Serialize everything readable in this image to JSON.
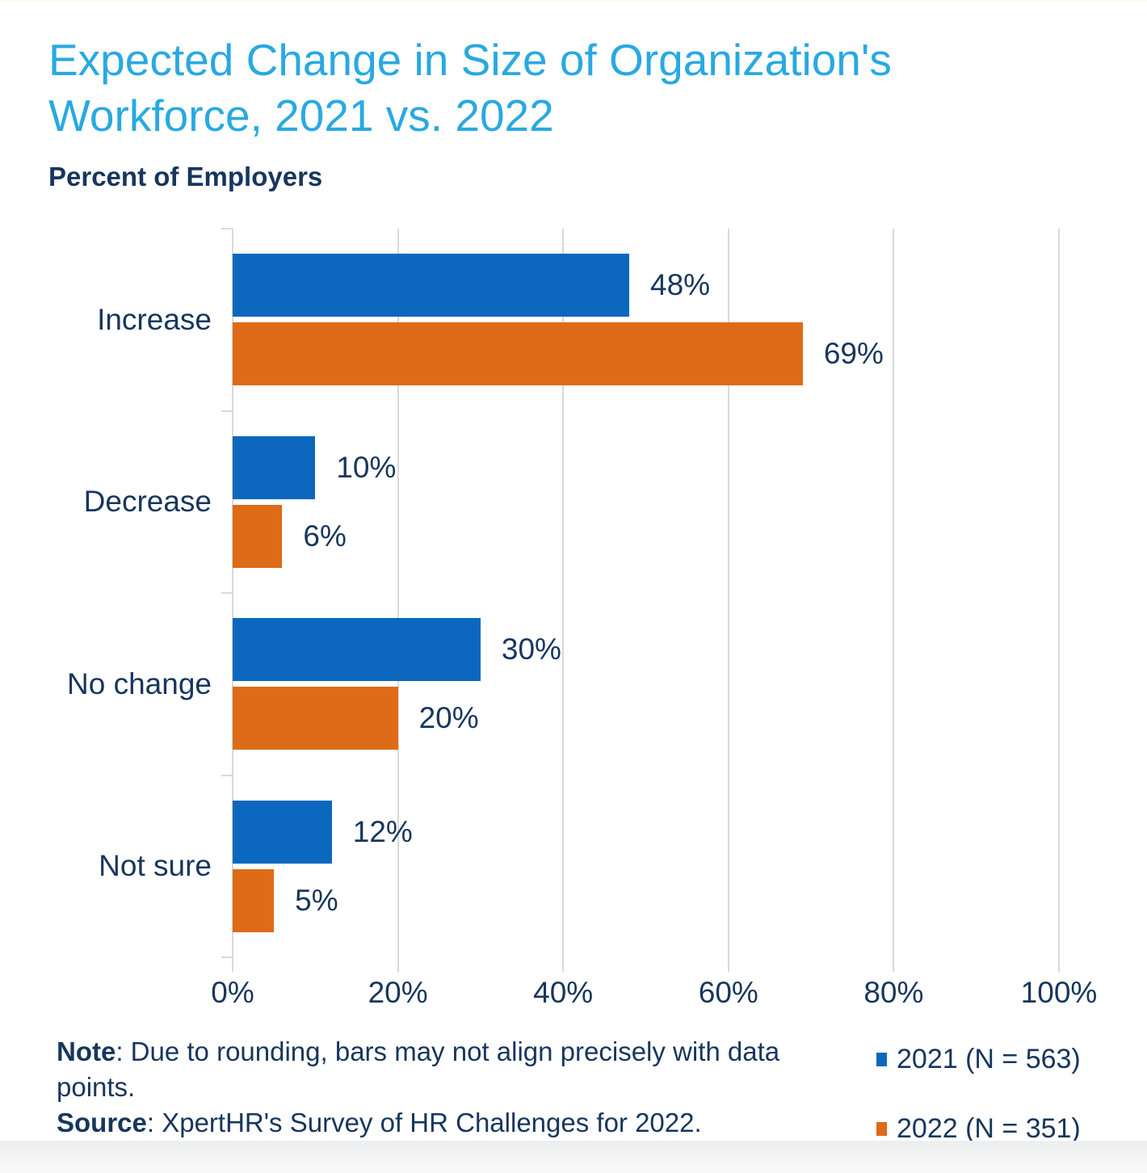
{
  "page": {
    "title_line1": "Expected Change in Size of Organization's",
    "title_line2": "Workforce, 2021 vs. 2022",
    "axis_heading": "Percent of Employers"
  },
  "chart_data": {
    "type": "bar",
    "orientation": "horizontal",
    "title": "Expected Change in Size of Organization's Workforce, 2021 vs. 2022",
    "value_axis_heading": "Percent of Employers",
    "categories": [
      "Increase",
      "Decrease",
      "No change",
      "Not sure"
    ],
    "series": [
      {
        "name": "2021 (N = 563)",
        "color": "#0B68BE",
        "values": [
          48,
          10,
          30,
          12
        ]
      },
      {
        "name": "2022 (N = 351)",
        "color": "#DE6B17",
        "values": [
          69,
          6,
          20,
          5
        ]
      }
    ],
    "value_suffix": "%",
    "x_ticks": [
      0,
      20,
      40,
      60,
      80,
      100
    ],
    "x_tick_labels": [
      "0%",
      "20%",
      "40%",
      "60%",
      "80%",
      "100%"
    ],
    "xlim": [
      0,
      100
    ],
    "grid": "vertical",
    "legend_position": "bottom-right"
  },
  "footnotes": {
    "note_label": "Note",
    "note_text": ": Due to rounding, bars may not align precisely with data points.",
    "source_label": "Source",
    "source_text": ": XpertHR's Survey of HR Challenges for 2022."
  },
  "legend": {
    "items": [
      {
        "label": "2021 (N = 563)",
        "color": "#0B68BE"
      },
      {
        "label": "2022 (N = 351)",
        "color": "#DE6B17"
      }
    ]
  },
  "colors": {
    "title": "#29A9E1",
    "text_navy": "#17365D",
    "gridline": "#D9D9D9",
    "series_2021": "#0B68BE",
    "series_2022": "#DE6B17",
    "background": "#FFFFFF"
  }
}
